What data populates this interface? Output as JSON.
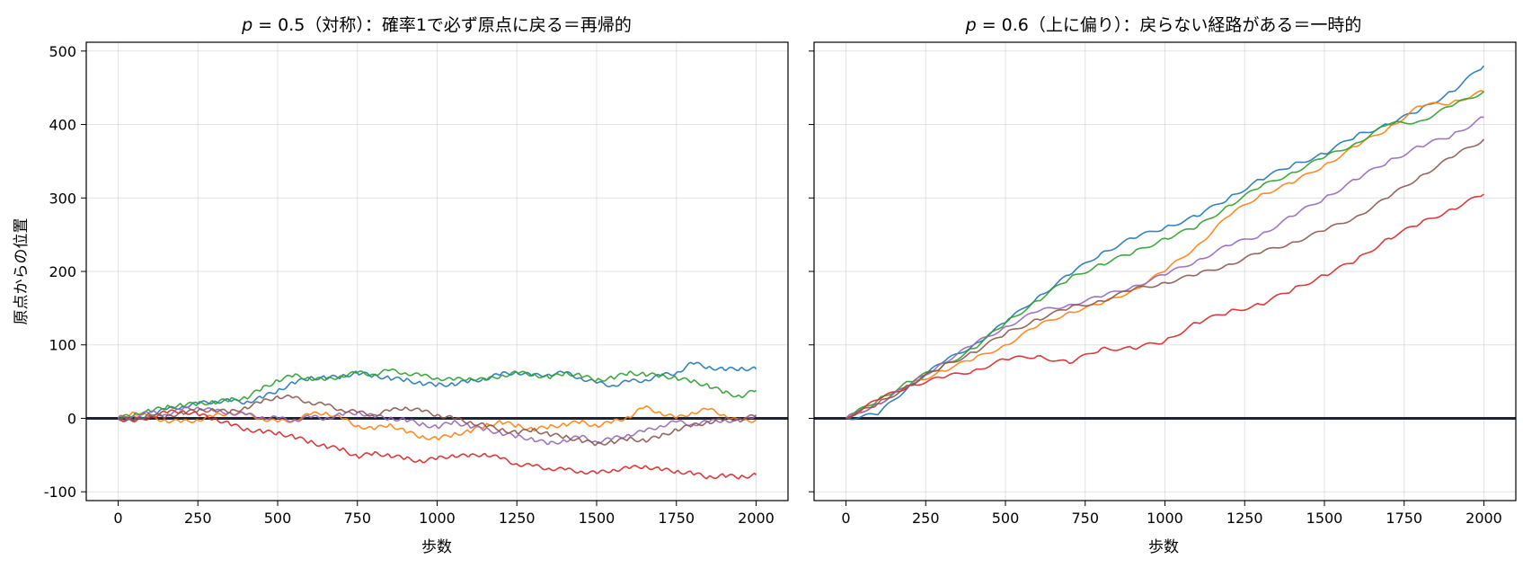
{
  "chart_data": [
    {
      "type": "line",
      "title": "p = 0.5（対称）：確率1で必ず原点に戻る＝再帰的",
      "title_var": "p",
      "title_rest": " = 0.5（対称）：確率1で必ず原点に戻る＝再帰的",
      "xlabel": "歩数",
      "ylabel": "原点からの位置",
      "xlim": [
        -100,
        2100
      ],
      "ylim": [
        -112,
        512
      ],
      "xticks": [
        0,
        250,
        500,
        750,
        1000,
        1250,
        1500,
        1750,
        2000
      ],
      "yticks": [
        -100,
        0,
        100,
        200,
        300,
        400,
        500
      ],
      "grid": true,
      "reference_line_y": 0,
      "series": [
        {
          "color": "#1f77b4",
          "x": [
            0,
            50,
            100,
            150,
            200,
            250,
            300,
            350,
            400,
            450,
            500,
            550,
            600,
            650,
            700,
            750,
            800,
            850,
            900,
            950,
            1000,
            1050,
            1100,
            1150,
            1200,
            1250,
            1300,
            1350,
            1400,
            1450,
            1500,
            1550,
            1600,
            1650,
            1700,
            1750,
            1800,
            1850,
            1900,
            1950,
            2000
          ],
          "y": [
            0,
            -3,
            5,
            12,
            16,
            20,
            23,
            24,
            22,
            28,
            38,
            48,
            55,
            55,
            57,
            62,
            58,
            55,
            52,
            48,
            45,
            47,
            50,
            54,
            60,
            63,
            58,
            60,
            62,
            55,
            48,
            45,
            50,
            52,
            58,
            62,
            75,
            70,
            66,
            68,
            67
          ]
        },
        {
          "color": "#ff7f0e",
          "x": [
            0,
            50,
            100,
            150,
            200,
            250,
            300,
            350,
            400,
            450,
            500,
            550,
            600,
            650,
            700,
            750,
            800,
            850,
            900,
            950,
            1000,
            1050,
            1100,
            1150,
            1200,
            1250,
            1300,
            1350,
            1400,
            1450,
            1500,
            1550,
            1600,
            1650,
            1700,
            1750,
            1800,
            1850,
            1900,
            1950,
            2000
          ],
          "y": [
            0,
            8,
            2,
            -3,
            -5,
            -2,
            3,
            8,
            5,
            0,
            -5,
            -2,
            5,
            8,
            0,
            -10,
            -15,
            -8,
            -18,
            -25,
            -28,
            -22,
            -18,
            -10,
            -5,
            -10,
            -15,
            -12,
            -8,
            -5,
            -10,
            -5,
            2,
            15,
            8,
            0,
            8,
            12,
            5,
            -5,
            -2
          ]
        },
        {
          "color": "#2ca02c",
          "x": [
            0,
            50,
            100,
            150,
            200,
            250,
            300,
            350,
            400,
            450,
            500,
            550,
            600,
            650,
            700,
            750,
            800,
            850,
            900,
            950,
            1000,
            1050,
            1100,
            1150,
            1200,
            1250,
            1300,
            1350,
            1400,
            1450,
            1500,
            1550,
            1600,
            1650,
            1700,
            1750,
            1800,
            1850,
            1900,
            1950,
            2000
          ],
          "y": [
            0,
            5,
            10,
            15,
            18,
            20,
            22,
            25,
            28,
            40,
            52,
            58,
            55,
            52,
            58,
            62,
            60,
            65,
            62,
            58,
            55,
            52,
            55,
            52,
            58,
            62,
            60,
            55,
            62,
            58,
            52,
            55,
            62,
            60,
            58,
            55,
            50,
            45,
            35,
            30,
            38
          ]
        },
        {
          "color": "#d62728",
          "x": [
            0,
            50,
            100,
            150,
            200,
            250,
            300,
            350,
            400,
            450,
            500,
            550,
            600,
            650,
            700,
            750,
            800,
            850,
            900,
            950,
            1000,
            1050,
            1100,
            1150,
            1200,
            1250,
            1300,
            1350,
            1400,
            1450,
            1500,
            1550,
            1600,
            1650,
            1700,
            1750,
            1800,
            1850,
            1900,
            1950,
            2000
          ],
          "y": [
            0,
            -5,
            2,
            8,
            10,
            5,
            0,
            -8,
            -15,
            -18,
            -20,
            -25,
            -32,
            -38,
            -42,
            -52,
            -48,
            -50,
            -55,
            -58,
            -55,
            -50,
            -52,
            -48,
            -55,
            -62,
            -65,
            -68,
            -70,
            -72,
            -75,
            -70,
            -68,
            -65,
            -70,
            -72,
            -75,
            -80,
            -78,
            -80,
            -77
          ]
        },
        {
          "color": "#9467bd",
          "x": [
            0,
            50,
            100,
            150,
            200,
            250,
            300,
            350,
            400,
            450,
            500,
            550,
            600,
            650,
            700,
            750,
            800,
            850,
            900,
            950,
            1000,
            1050,
            1100,
            1150,
            1200,
            1250,
            1300,
            1350,
            1400,
            1450,
            1500,
            1550,
            1600,
            1650,
            1700,
            1750,
            1800,
            1850,
            1900,
            1950,
            2000
          ],
          "y": [
            0,
            3,
            8,
            5,
            12,
            15,
            10,
            8,
            5,
            2,
            0,
            -3,
            2,
            0,
            5,
            8,
            3,
            0,
            -2,
            -8,
            -12,
            -5,
            -10,
            -15,
            -20,
            -25,
            -28,
            -35,
            -30,
            -25,
            -32,
            -28,
            -22,
            -18,
            -10,
            -5,
            -8,
            -5,
            -2,
            -5,
            5
          ]
        },
        {
          "color": "#8c564b",
          "x": [
            0,
            50,
            100,
            150,
            200,
            250,
            300,
            350,
            400,
            450,
            500,
            550,
            600,
            650,
            700,
            750,
            800,
            850,
            900,
            950,
            1000,
            1050,
            1100,
            1150,
            1200,
            1250,
            1300,
            1350,
            1400,
            1450,
            1500,
            1550,
            1600,
            1650,
            1700,
            1750,
            1800,
            1850,
            1900,
            1950,
            2000
          ],
          "y": [
            0,
            -2,
            5,
            2,
            8,
            10,
            12,
            8,
            15,
            22,
            30,
            28,
            22,
            18,
            12,
            8,
            5,
            10,
            15,
            10,
            5,
            0,
            -5,
            -10,
            -15,
            -20,
            -15,
            -22,
            -25,
            -30,
            -35,
            -32,
            -28,
            -30,
            -25,
            -15,
            -10,
            -5,
            -2,
            0,
            3
          ]
        }
      ]
    },
    {
      "type": "line",
      "title": "p = 0.6（上に偏り）：戻らない経路がある＝一時的",
      "title_var": "p",
      "title_rest": " = 0.6（上に偏り）：戻らない経路がある＝一時的",
      "xlabel": "歩数",
      "xlim": [
        -100,
        2100
      ],
      "ylim": [
        -112,
        512
      ],
      "xticks": [
        0,
        250,
        500,
        750,
        1000,
        1250,
        1500,
        1750,
        2000
      ],
      "yticks": [
        -100,
        0,
        100,
        200,
        300,
        400,
        500
      ],
      "grid": true,
      "reference_line_y": 0,
      "series": [
        {
          "color": "#1f77b4",
          "x": [
            0,
            100,
            200,
            300,
            400,
            500,
            600,
            700,
            800,
            900,
            1000,
            1100,
            1200,
            1300,
            1400,
            1500,
            1600,
            1700,
            1800,
            1900,
            2000
          ],
          "y": [
            0,
            5,
            45,
            75,
            100,
            130,
            165,
            195,
            225,
            245,
            260,
            275,
            300,
            325,
            345,
            360,
            385,
            400,
            420,
            445,
            480
          ]
        },
        {
          "color": "#ff7f0e",
          "x": [
            0,
            100,
            200,
            300,
            400,
            500,
            600,
            700,
            800,
            900,
            1000,
            1100,
            1200,
            1300,
            1400,
            1500,
            1600,
            1700,
            1800,
            1900,
            2000
          ],
          "y": [
            0,
            20,
            45,
            65,
            80,
            100,
            125,
            145,
            155,
            175,
            200,
            235,
            275,
            305,
            320,
            345,
            370,
            395,
            425,
            430,
            445
          ]
        },
        {
          "color": "#2ca02c",
          "x": [
            0,
            100,
            200,
            300,
            400,
            500,
            600,
            700,
            800,
            900,
            1000,
            1100,
            1200,
            1300,
            1400,
            1500,
            1600,
            1700,
            1800,
            1900,
            2000
          ],
          "y": [
            0,
            25,
            50,
            70,
            95,
            130,
            160,
            190,
            210,
            225,
            245,
            260,
            290,
            315,
            335,
            355,
            375,
            400,
            405,
            425,
            445
          ]
        },
        {
          "color": "#d62728",
          "x": [
            0,
            100,
            200,
            300,
            400,
            500,
            600,
            700,
            800,
            900,
            1000,
            1100,
            1200,
            1300,
            1400,
            1500,
            1600,
            1700,
            1800,
            1900,
            2000
          ],
          "y": [
            0,
            25,
            45,
            55,
            65,
            80,
            85,
            75,
            95,
            95,
            105,
            130,
            145,
            155,
            175,
            195,
            215,
            245,
            265,
            285,
            305
          ]
        },
        {
          "color": "#9467bd",
          "x": [
            0,
            100,
            200,
            300,
            400,
            500,
            600,
            700,
            800,
            900,
            1000,
            1100,
            1200,
            1300,
            1400,
            1500,
            1600,
            1700,
            1800,
            1900,
            2000
          ],
          "y": [
            0,
            20,
            45,
            75,
            100,
            125,
            145,
            155,
            165,
            180,
            195,
            215,
            235,
            250,
            275,
            300,
            325,
            350,
            370,
            385,
            410
          ]
        },
        {
          "color": "#8c564b",
          "x": [
            0,
            100,
            200,
            300,
            400,
            500,
            600,
            700,
            800,
            900,
            1000,
            1100,
            1200,
            1300,
            1400,
            1500,
            1600,
            1700,
            1800,
            1900,
            2000
          ],
          "y": [
            0,
            20,
            45,
            70,
            90,
            115,
            135,
            150,
            160,
            175,
            185,
            195,
            210,
            225,
            240,
            255,
            275,
            300,
            330,
            355,
            380
          ]
        }
      ]
    }
  ]
}
